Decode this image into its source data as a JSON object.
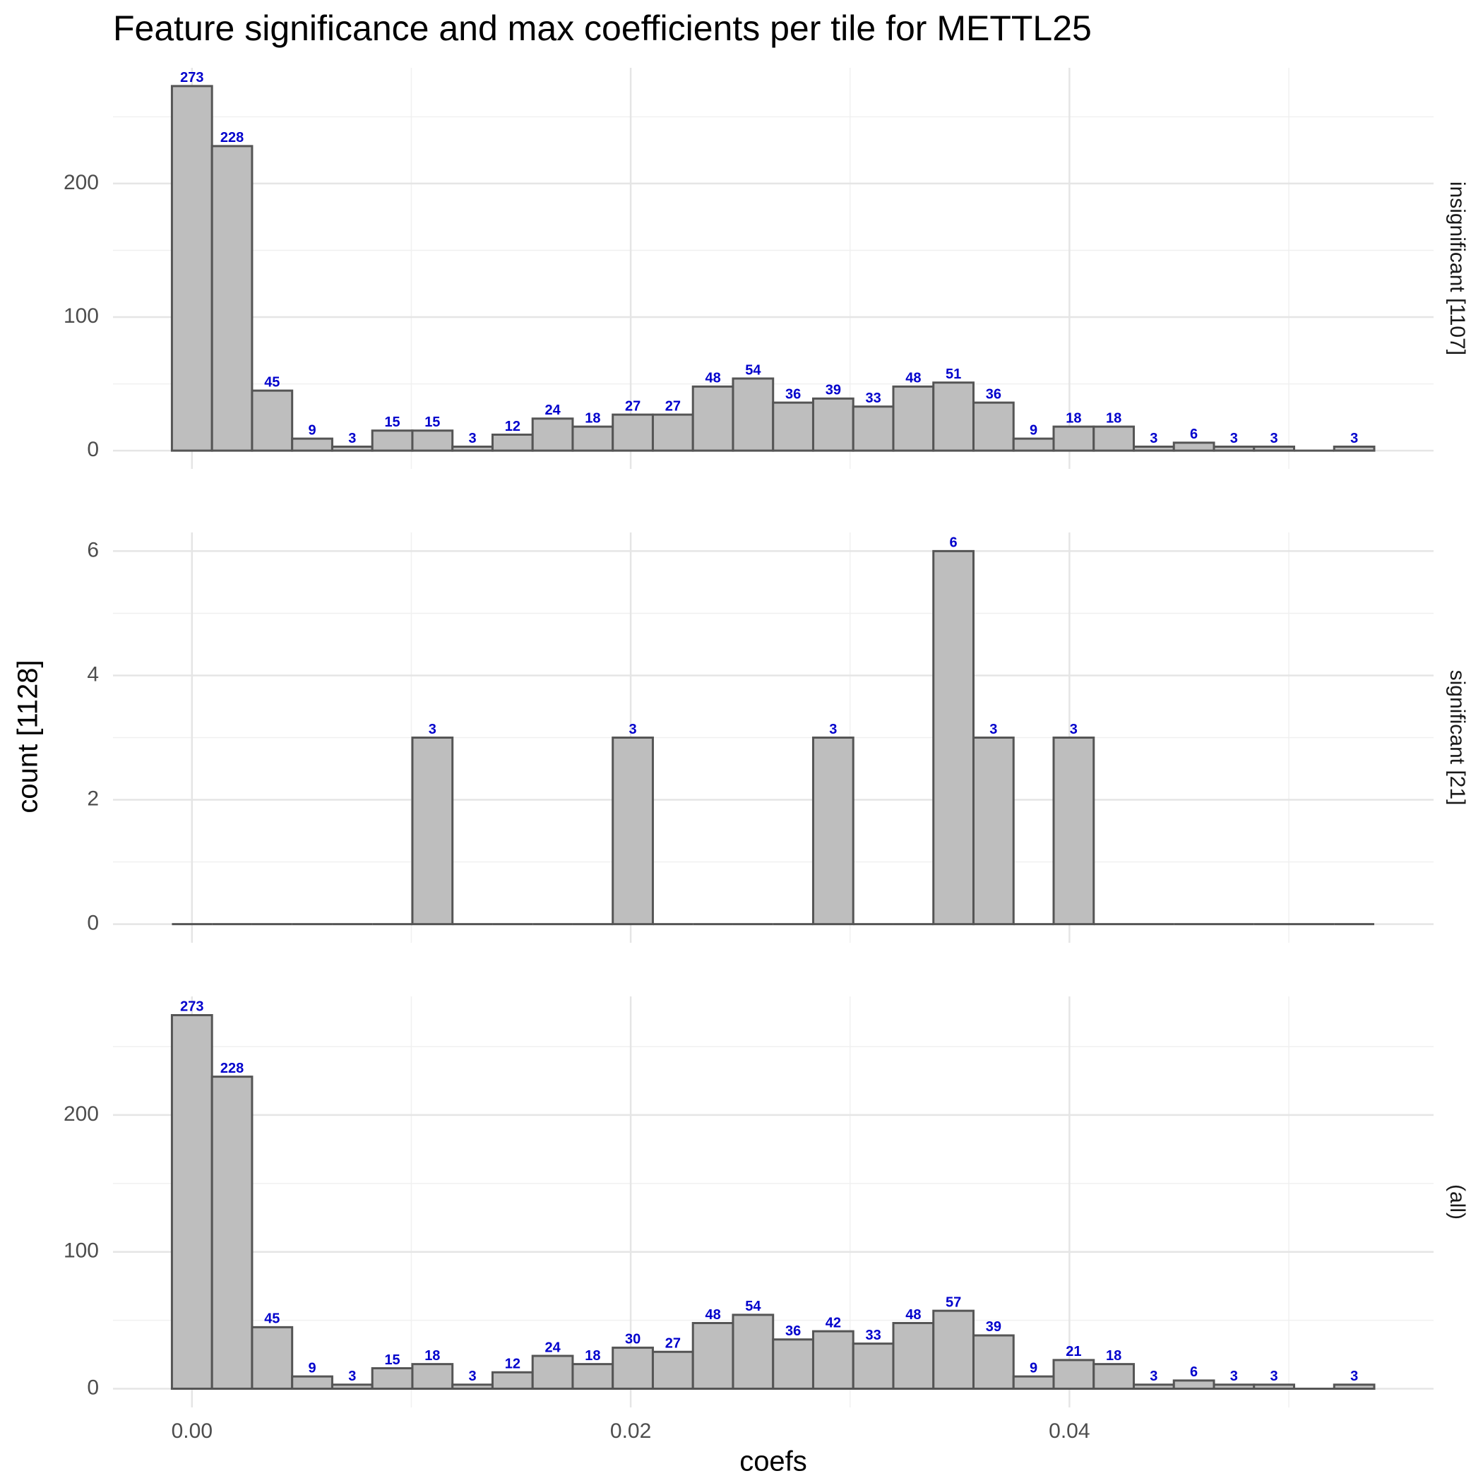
{
  "title": "Feature significance and max coefficients per tile for METTL25",
  "x_label": "coefs",
  "y_label": "count [1128]",
  "chart_data": [
    {
      "type": "histogram",
      "facet_label": "insignificant [1107]",
      "bins": [
        -0.000914,
        0.000913,
        0.00274,
        0.004567,
        0.006394,
        0.008221,
        0.010048,
        0.011875,
        0.013702,
        0.015529,
        0.017356,
        0.019183,
        0.02101,
        0.022837,
        0.024664,
        0.026491,
        0.028318,
        0.030145,
        0.031972,
        0.033799,
        0.035626,
        0.037453,
        0.03928,
        0.041107,
        0.042934,
        0.044761,
        0.046588,
        0.048415,
        0.050242,
        0.052069,
        0.053896
      ],
      "values": [
        273,
        228,
        45,
        9,
        3,
        15,
        15,
        3,
        12,
        24,
        18,
        27,
        27,
        48,
        54,
        36,
        39,
        33,
        48,
        51,
        36,
        9,
        18,
        18,
        3,
        6,
        3,
        3,
        0,
        3
      ],
      "color": "#bebebe",
      "xlim": [
        -0.0036,
        0.0566
      ],
      "xticks": [
        {
          "value": 0,
          "label": "0.00"
        },
        0.02,
        0.04
      ],
      "xminor": [
        0.01,
        0.03,
        0.05
      ],
      "ylim": [
        -13.65,
        286.65
      ],
      "yticks": [
        0,
        100,
        200
      ],
      "yminor": [
        50,
        150,
        250
      ],
      "grid": true
    },
    {
      "type": "histogram",
      "facet_label": "significant [21]",
      "bins": [
        -0.000914,
        0.000913,
        0.00274,
        0.004567,
        0.006394,
        0.008221,
        0.010048,
        0.011875,
        0.013702,
        0.015529,
        0.017356,
        0.019183,
        0.02101,
        0.022837,
        0.024664,
        0.026491,
        0.028318,
        0.030145,
        0.031972,
        0.033799,
        0.035626,
        0.037453,
        0.03928,
        0.041107,
        0.042934,
        0.044761,
        0.046588,
        0.048415,
        0.050242,
        0.052069,
        0.053896
      ],
      "values": [
        0,
        0,
        0,
        0,
        0,
        0,
        3,
        0,
        0,
        0,
        0,
        3,
        0,
        0,
        0,
        0,
        3,
        0,
        0,
        6,
        3,
        0,
        3,
        0,
        0,
        0,
        0,
        0,
        0,
        0
      ],
      "color": "#bebebe",
      "xlim": [
        -0.0036,
        0.0566
      ],
      "xticks": [
        {
          "value": 0,
          "label": "0.00"
        },
        0.02,
        0.04
      ],
      "xminor": [
        0.01,
        0.03,
        0.05
      ],
      "ylim": [
        -0.3,
        6.3
      ],
      "yticks": [
        0,
        2,
        4,
        6
      ],
      "yminor": [
        1,
        3,
        5
      ],
      "grid": true
    },
    {
      "type": "histogram",
      "facet_label": "(all)",
      "bins": [
        -0.000914,
        0.000913,
        0.00274,
        0.004567,
        0.006394,
        0.008221,
        0.010048,
        0.011875,
        0.013702,
        0.015529,
        0.017356,
        0.019183,
        0.02101,
        0.022837,
        0.024664,
        0.026491,
        0.028318,
        0.030145,
        0.031972,
        0.033799,
        0.035626,
        0.037453,
        0.03928,
        0.041107,
        0.042934,
        0.044761,
        0.046588,
        0.048415,
        0.050242,
        0.052069,
        0.053896
      ],
      "values": [
        273,
        228,
        45,
        9,
        3,
        15,
        18,
        3,
        12,
        24,
        18,
        30,
        27,
        48,
        54,
        36,
        42,
        33,
        48,
        57,
        39,
        9,
        21,
        18,
        3,
        6,
        3,
        3,
        0,
        3
      ],
      "color": "#bebebe",
      "xlim": [
        -0.0036,
        0.0566
      ],
      "xticks": [
        {
          "value": 0,
          "label": "0.00"
        },
        0.02,
        0.04
      ],
      "xminor": [
        0.01,
        0.03,
        0.05
      ],
      "ylim": [
        -13.65,
        286.65
      ],
      "yticks": [
        0,
        100,
        200
      ],
      "yminor": [
        50,
        150,
        250
      ],
      "grid": true
    }
  ]
}
